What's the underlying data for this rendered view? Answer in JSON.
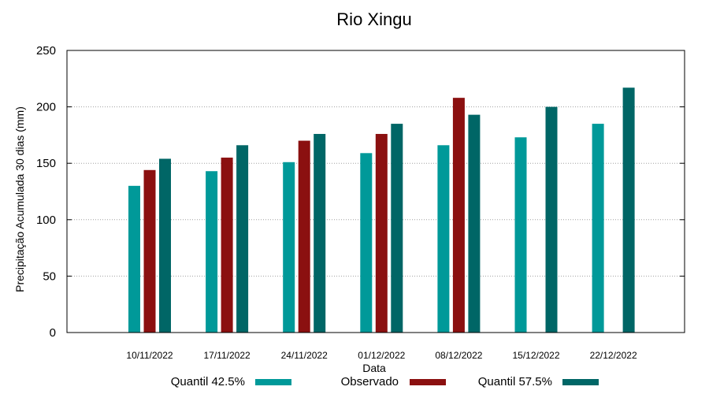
{
  "chart_data": {
    "type": "bar",
    "title": "Rio Xingu",
    "xlabel": "Data",
    "ylabel": "Precipitação Acumulada 30 dias (mm)",
    "ylim": [
      0,
      250
    ],
    "yticks": [
      0,
      50,
      100,
      150,
      200,
      250
    ],
    "grid": true,
    "legend_position": "bottom",
    "categories": [
      "10/11/2022",
      "17/11/2022",
      "24/11/2022",
      "01/12/2022",
      "08/12/2022",
      "15/12/2022",
      "22/12/2022"
    ],
    "series": [
      {
        "name": "Quantil 42.5%",
        "color": "#009999",
        "values": [
          130,
          143,
          151,
          159,
          166,
          173,
          185
        ]
      },
      {
        "name": "Observado",
        "color": "#8b1010",
        "values": [
          144,
          155,
          170,
          176,
          208,
          null,
          null
        ]
      },
      {
        "name": "Quantil 57.5%",
        "color": "#006666",
        "values": [
          154,
          166,
          176,
          185,
          193,
          200,
          217
        ]
      }
    ]
  }
}
